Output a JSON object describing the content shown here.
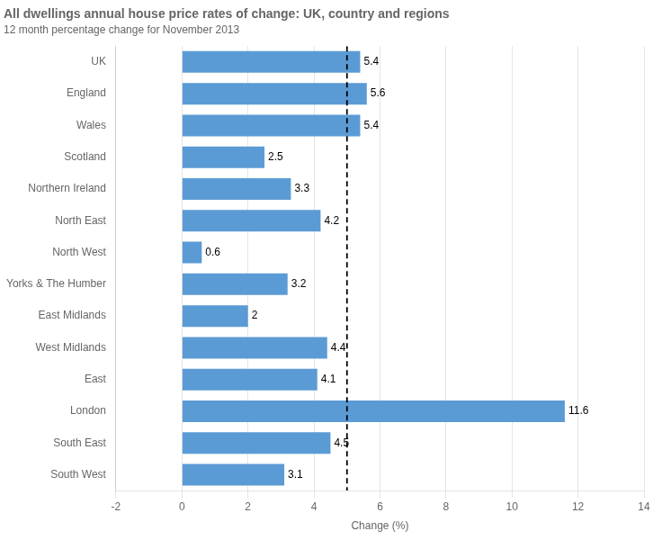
{
  "chart_data": {
    "type": "bar",
    "orientation": "horizontal",
    "title": "All dwellings annual house price rates of change: UK, country and regions",
    "subtitle": "12 month percentage change for November 2013",
    "xlabel": "Change (%)",
    "categories": [
      "UK",
      "England",
      "Wales",
      "Scotland",
      "Northern Ireland",
      "North East",
      "North West",
      "Yorks & The Humber",
      "East Midlands",
      "West Midlands",
      "East",
      "London",
      "South East",
      "South West"
    ],
    "values": [
      5.4,
      5.6,
      5.4,
      2.5,
      3.3,
      4.2,
      0.6,
      3.2,
      2.0,
      4.4,
      4.1,
      11.6,
      4.5,
      3.1
    ],
    "color": "#5b9bd5",
    "xlim": [
      -2,
      14
    ],
    "xticks": [
      -2,
      0,
      2,
      4,
      6,
      8,
      10,
      12,
      14
    ],
    "grid": true,
    "data_labels": true,
    "ref_lines": [
      {
        "x": 5.0,
        "line_style": "dashed",
        "color": "#000000"
      }
    ]
  }
}
